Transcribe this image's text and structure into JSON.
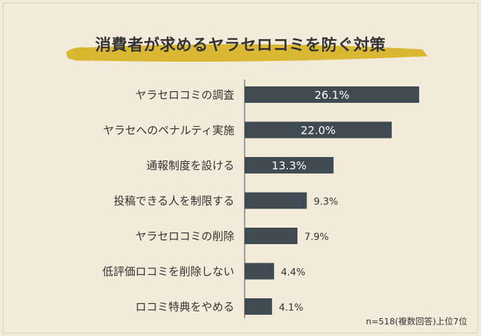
{
  "colors": {
    "background": "#f3ebd9",
    "bar": "#3f4a52",
    "highlight": "#d8b52a",
    "text": "#333333",
    "label_inside": "#ffffff"
  },
  "chart_data": {
    "type": "bar",
    "orientation": "horizontal",
    "title": "消費者が求めるヤラセロコミを防ぐ対策",
    "categories": [
      "ヤラセロコミの調査",
      "ヤラセへのペナルティ実施",
      "通報制度を設ける",
      "投稿できる人を制限する",
      "ヤラセロコミの削除",
      "低評価ロコミを削除しない",
      "ロコミ特典をやめる"
    ],
    "values": [
      26.1,
      22.0,
      13.3,
      9.3,
      7.9,
      4.4,
      4.1
    ],
    "value_labels": [
      "26.1%",
      "22.0%",
      "13.3%",
      "9.3%",
      "7.9%",
      "4.4%",
      "4.1%"
    ],
    "value_unit": "%",
    "grid": false,
    "legend": "none"
  },
  "note": "n=518(複数回答)上位7位"
}
